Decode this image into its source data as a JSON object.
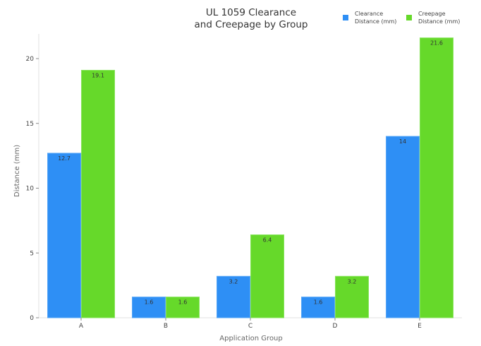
{
  "chart_data": {
    "type": "bar",
    "title": "UL 1059 Clearance and Creepage by Group",
    "title_lines": [
      "UL 1059 Clearance",
      "and Creepage by Group"
    ],
    "xlabel": "Application Group",
    "ylabel": "Distance (mm)",
    "categories": [
      "A",
      "B",
      "C",
      "D",
      "E"
    ],
    "series": [
      {
        "name": "Clearance Distance (mm)",
        "legend_lines": [
          "Clearance",
          "Distance (mm)"
        ],
        "color": "#2e8ff5",
        "values": [
          12.7,
          1.6,
          3.2,
          1.6,
          14
        ],
        "labels": [
          "12.7",
          "1.6",
          "3.2",
          "1.6",
          "14"
        ]
      },
      {
        "name": "Creepage Distance (mm)",
        "legend_lines": [
          "Creepage",
          "Distance (mm)"
        ],
        "color": "#66d92a",
        "values": [
          19.1,
          1.6,
          6.4,
          3.2,
          21.6
        ],
        "labels": [
          "19.1",
          "1.6",
          "6.4",
          "3.2",
          "21.6"
        ]
      }
    ],
    "yticks": [
      0,
      5,
      10,
      15,
      20
    ],
    "ylim": [
      0,
      22
    ],
    "grid": false,
    "legend_position": "top-right"
  }
}
